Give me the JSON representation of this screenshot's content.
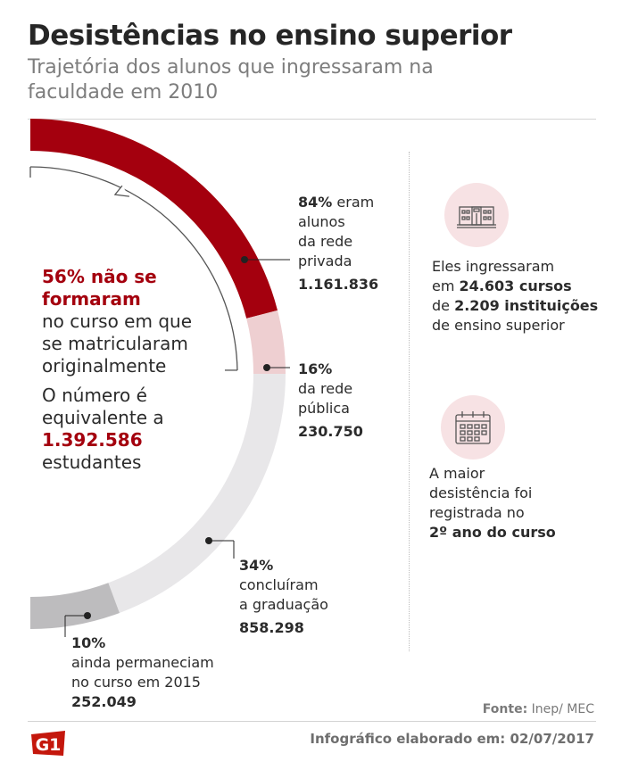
{
  "title": "Desistências no ensino superior",
  "subtitle": "Trajetória dos alunos que ingressaram na faculdade em 2010",
  "chart_data": {
    "type": "pie",
    "subtype": "semicircle-donut",
    "unit": "alunos",
    "slices": [
      {
        "pct": "84%",
        "text": "eram alunos da rede privada",
        "value": 1161836,
        "display": "1.161.836",
        "color": "#a4000e",
        "fraction": 0.84
      },
      {
        "pct": "16%",
        "text": "da rede pública",
        "value": 230750,
        "display": "230.750",
        "color": "#eecfd1",
        "fraction": 0.16
      },
      {
        "pct": "34%",
        "text": "concluíram a graduação",
        "value": 858298,
        "display": "858.298",
        "color": "#e8e7e9",
        "fraction": 0.34
      },
      {
        "pct": "10%",
        "text": "ainda permaneciam no curso em 2015",
        "value": 252049,
        "display": "252.049",
        "color": "#bdbcbe",
        "fraction": 0.1
      }
    ],
    "group": {
      "pct": "56%",
      "covers": [
        "84%",
        "16%"
      ]
    }
  },
  "labels": {
    "s0": {
      "pct": "84%",
      "l1": "eram",
      "l2": "alunos",
      "l3": "da rede",
      "l4": "privada",
      "num": "1.161.836"
    },
    "s1": {
      "pct": "16%",
      "l1": "da rede",
      "l2": "pública",
      "num": "230.750"
    },
    "s2": {
      "pct": "34%",
      "l1": "concluíram",
      "l2": "a graduação",
      "num": "858.298"
    },
    "s3": {
      "pct": "10%",
      "l1": "ainda permaneciam",
      "l2": "no curso em 2015",
      "num": "252.049"
    }
  },
  "left_note": {
    "red1": "56% não se",
    "red2": "formaram",
    "l1": "no curso em que",
    "l2": "se matricularam",
    "l3": "originalmente",
    "l4": "O número é",
    "l5": "equivalente a",
    "num": "1.392.586",
    "l6": "estudantes"
  },
  "side1": {
    "icon": "building-icon",
    "l1": "Eles ingressaram",
    "l2a": "em ",
    "l2b": "24.603 cursos",
    "l3a": "de ",
    "l3b": "2.209 instituições",
    "l4": "de ensino superior"
  },
  "side2": {
    "icon": "calendar-icon",
    "l1": "A maior",
    "l2": "desistência foi",
    "l3": "registrada no",
    "l4": "2º ano do curso"
  },
  "source_label": "Fonte:",
  "source_value": " Inep/ MEC",
  "credit": "Infográfico elaborado em: 02/07/2017",
  "logo_text": "G1",
  "colors": {
    "accent": "#a4000e",
    "muted": "#7d7d7d"
  }
}
